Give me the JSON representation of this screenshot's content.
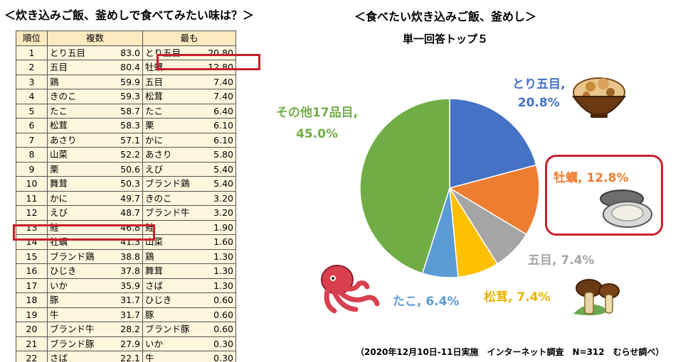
{
  "left_title": "＜炊き込みご飯、釜めしで食べてみたい味は？＞",
  "right_title": "＜食べたい炊き込みご飯、釜めし＞",
  "subtitle": "単一回答トップ５",
  "table": {
    "headers": {
      "rank": "順位",
      "multi": "複数",
      "single": "最も"
    },
    "rows": [
      {
        "rank": "1",
        "m_name": "とり五目",
        "m_val": "83.0",
        "s_name": "とり五目",
        "s_val": "20.80"
      },
      {
        "rank": "2",
        "m_name": "五目",
        "m_val": "80.4",
        "s_name": "牡蠣",
        "s_val": "12.80"
      },
      {
        "rank": "3",
        "m_name": "鶏",
        "m_val": "59.9",
        "s_name": "五目",
        "s_val": "7.40"
      },
      {
        "rank": "4",
        "m_name": "きのこ",
        "m_val": "59.3",
        "s_name": "松茸",
        "s_val": "7.40"
      },
      {
        "rank": "5",
        "m_name": "たこ",
        "m_val": "58.7",
        "s_name": "たこ",
        "s_val": "6.40"
      },
      {
        "rank": "6",
        "m_name": "松茸",
        "m_val": "58.3",
        "s_name": "栗",
        "s_val": "6.10"
      },
      {
        "rank": "7",
        "m_name": "あさり",
        "m_val": "57.1",
        "s_name": "かに",
        "s_val": "6.10"
      },
      {
        "rank": "8",
        "m_name": "山菜",
        "m_val": "52.2",
        "s_name": "あさり",
        "s_val": "5.80"
      },
      {
        "rank": "9",
        "m_name": "栗",
        "m_val": "50.6",
        "s_name": "えび",
        "s_val": "5.40"
      },
      {
        "rank": "10",
        "m_name": "舞茸",
        "m_val": "50.3",
        "s_name": "ブランド鶏",
        "s_val": "5.40"
      },
      {
        "rank": "11",
        "m_name": "かに",
        "m_val": "49.7",
        "s_name": "きのこ",
        "s_val": "3.20"
      },
      {
        "rank": "12",
        "m_name": "えび",
        "m_val": "48.7",
        "s_name": "ブランド牛",
        "s_val": "3.20"
      },
      {
        "rank": "13",
        "m_name": "鮭",
        "m_val": "46.8",
        "s_name": "鮭",
        "s_val": "1.90"
      },
      {
        "rank": "14",
        "m_name": "牡蠣",
        "m_val": "41.3",
        "s_name": "山菜",
        "s_val": "1.60"
      },
      {
        "rank": "15",
        "m_name": "ブランド鶏",
        "m_val": "38.8",
        "s_name": "鶏",
        "s_val": "1.30"
      },
      {
        "rank": "16",
        "m_name": "ひじき",
        "m_val": "37.8",
        "s_name": "舞茸",
        "s_val": "1.30"
      },
      {
        "rank": "17",
        "m_name": "いか",
        "m_val": "35.9",
        "s_name": "さば",
        "s_val": "1.30"
      },
      {
        "rank": "18",
        "m_name": "豚",
        "m_val": "31.7",
        "s_name": "ひじき",
        "s_val": "0.60"
      },
      {
        "rank": "19",
        "m_name": "牛",
        "m_val": "31.7",
        "s_name": "豚",
        "s_val": "0.60"
      },
      {
        "rank": "20",
        "m_name": "ブランド牛",
        "m_val": "28.2",
        "s_name": "ブランド豚",
        "s_val": "0.60"
      },
      {
        "rank": "21",
        "m_name": "ブランド豚",
        "m_val": "27.9",
        "s_name": "いか",
        "s_val": "0.30"
      },
      {
        "rank": "22",
        "m_name": "さば",
        "m_val": "22.1",
        "s_name": "牛",
        "s_val": "0.30"
      }
    ]
  },
  "chart_data": {
    "type": "pie",
    "title": "単一回答トップ５",
    "slices": [
      {
        "label": "とり五目",
        "value": 20.8,
        "display": "20.8%",
        "color": "#4472c4"
      },
      {
        "label": "牡蠣",
        "value": 12.8,
        "display": "12.8%",
        "color": "#ed7d31"
      },
      {
        "label": "五目",
        "value": 7.4,
        "display": "7.4%",
        "color": "#a5a5a5"
      },
      {
        "label": "松茸",
        "value": 7.4,
        "display": "7.4%",
        "color": "#ffc000"
      },
      {
        "label": "たこ",
        "value": 6.4,
        "display": "6.4%",
        "color": "#5b9bd5"
      },
      {
        "label": "その他17品目",
        "value": 45.0,
        "display": "45.0%",
        "color": "#70ad47"
      }
    ]
  },
  "pie_labels": {
    "tori": {
      "name": "とり五目,",
      "pct": "20.8%"
    },
    "kaki": "牡蠣, 12.8%",
    "gomoku": "五目, 7.4%",
    "matsutake": "松茸, 7.4%",
    "tako": "たこ, 6.4%",
    "other": {
      "name": "その他17品目,",
      "pct": "45.0%"
    }
  },
  "footnote": "（2020年12月10日-11日実施　インターネット調査　N=312　むらせ調べ）",
  "colors": {
    "highlight": "#c8202c",
    "table_header": "#fbe9c0",
    "table_cell": "#fdf5dc"
  },
  "illustrations": [
    "rice-bowl-illustration",
    "oyster-illustration",
    "octopus-illustration",
    "matsutake-illustration"
  ]
}
